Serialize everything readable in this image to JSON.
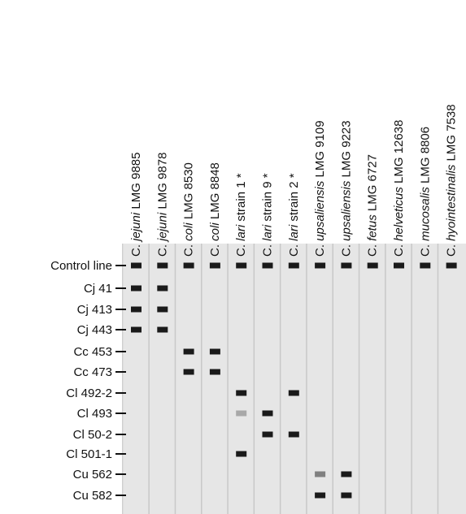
{
  "columns": [
    {
      "genus": "C.",
      "species": "jejuni",
      "strain": "LMG 9885"
    },
    {
      "genus": "C.",
      "species": "jejuni",
      "strain": "LMG 9878"
    },
    {
      "genus": "C.",
      "species": "coli",
      "strain": "LMG 8530"
    },
    {
      "genus": "C.",
      "species": "coli",
      "strain": "LMG 8848"
    },
    {
      "genus": "C.",
      "species": "lari",
      "strain": "strain 1 *"
    },
    {
      "genus": "C.",
      "species": "lari",
      "strain": "strain 9 *"
    },
    {
      "genus": "C.",
      "species": "lari",
      "strain": "strain 2 *"
    },
    {
      "genus": "C.",
      "species": "upsaliensis",
      "strain": "LMG 9109"
    },
    {
      "genus": "C.",
      "species": "upsaliensis",
      "strain": "LMG 9223"
    },
    {
      "genus": "C.",
      "species": "fetus",
      "strain": "LMG 6727"
    },
    {
      "genus": "C.",
      "species": "helveticus",
      "strain": "LMG 12638"
    },
    {
      "genus": "C.",
      "species": "mucosalis",
      "strain": "LMG 8806"
    },
    {
      "genus": "C.",
      "species": "hyointestinalis",
      "strain": "LMG 7538"
    }
  ],
  "rows": [
    {
      "label": "Control line",
      "bands": [
        1,
        1,
        1,
        1,
        1,
        1,
        1,
        1,
        1,
        1,
        1,
        1,
        1
      ]
    },
    {
      "label": "Cj 41",
      "bands": [
        1,
        1,
        0,
        0,
        0,
        0,
        0,
        0,
        0,
        0,
        0,
        0,
        0
      ]
    },
    {
      "label": "Cj 413",
      "bands": [
        1,
        1,
        0,
        0,
        0,
        0,
        0,
        0,
        0,
        0,
        0,
        0,
        0
      ]
    },
    {
      "label": "Cj 443",
      "bands": [
        1,
        1,
        0,
        0,
        0,
        0,
        0,
        0,
        0,
        0,
        0,
        0,
        0
      ]
    },
    {
      "label": "Cc 453",
      "bands": [
        0,
        0,
        1,
        1,
        0,
        0,
        0,
        0,
        0,
        0,
        0,
        0,
        0
      ]
    },
    {
      "label": "Cc 473",
      "bands": [
        0,
        0,
        1,
        1,
        0,
        0,
        0,
        0,
        0,
        0,
        0,
        0,
        0
      ]
    },
    {
      "label": "Cl 492-2",
      "bands": [
        0,
        0,
        0,
        0,
        1,
        0,
        1,
        0,
        0,
        0,
        0,
        0,
        0
      ]
    },
    {
      "label": "Cl 493",
      "bands": [
        0,
        0,
        0,
        0,
        0.3,
        1,
        0,
        0,
        0,
        0,
        0,
        0,
        0
      ]
    },
    {
      "label": "Cl 50-2",
      "bands": [
        0,
        0,
        0,
        0,
        0,
        1,
        1,
        0,
        0,
        0,
        0,
        0,
        0
      ]
    },
    {
      "label": "Cl 501-1",
      "bands": [
        0,
        0,
        0,
        0,
        1,
        0,
        0,
        0,
        0,
        0,
        0,
        0,
        0
      ]
    },
    {
      "label": "Cu 562",
      "bands": [
        0,
        0,
        0,
        0,
        0,
        0,
        0,
        0.5,
        1,
        0,
        0,
        0,
        0
      ]
    },
    {
      "label": "Cu 582",
      "bands": [
        0,
        0,
        0,
        0,
        0,
        0,
        0,
        1,
        1,
        0,
        0,
        0,
        0
      ]
    }
  ]
}
